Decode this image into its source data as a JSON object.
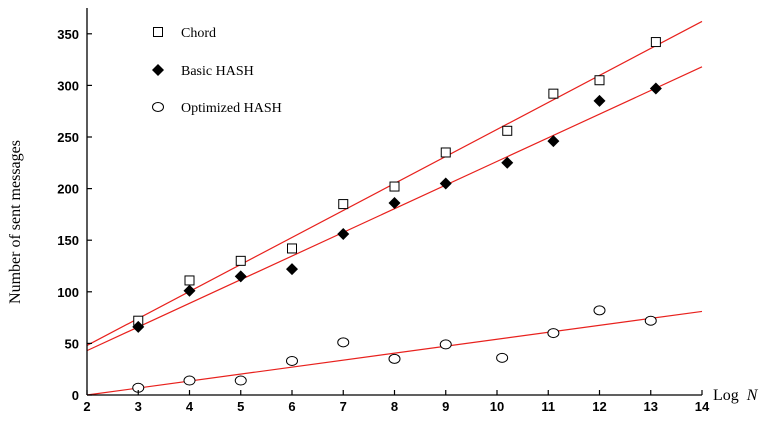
{
  "chart_data": {
    "type": "scatter",
    "title": "",
    "xlabel": "Log",
    "xlabel_var": "N",
    "ylabel": "Number of sent messages",
    "xlim": [
      2,
      14
    ],
    "ylim": [
      0,
      375
    ],
    "xticks": [
      2,
      3,
      4,
      5,
      6,
      7,
      8,
      9,
      10,
      11,
      12,
      13,
      14
    ],
    "yticks": [
      0,
      50,
      100,
      150,
      200,
      250,
      300,
      350
    ],
    "grid": false,
    "legend_position": "top-left",
    "fit_line_color": "#e8211d",
    "series": [
      {
        "name": "Chord",
        "marker": "open-square",
        "x": [
          3,
          4,
          5,
          6,
          7,
          8,
          9,
          10.2,
          11.1,
          12,
          13.1
        ],
        "y": [
          72,
          111,
          130,
          142,
          185,
          202,
          235,
          256,
          292,
          305,
          342
        ],
        "fit": [
          [
            2,
            48
          ],
          [
            14,
            362
          ]
        ]
      },
      {
        "name": "Basic HASH",
        "marker": "filled-diamond",
        "x": [
          3,
          4,
          5,
          6,
          7,
          8,
          9,
          10.2,
          11.1,
          12,
          13.1
        ],
        "y": [
          66,
          101,
          115,
          122,
          156,
          186,
          205,
          225,
          246,
          285,
          297
        ],
        "fit": [
          [
            2,
            43
          ],
          [
            14,
            318
          ]
        ]
      },
      {
        "name": "Optimized HASH",
        "marker": "open-circle",
        "x": [
          3,
          4,
          5,
          6,
          7,
          8,
          9,
          10.1,
          11.1,
          12,
          13
        ],
        "y": [
          7,
          14,
          14,
          33,
          51,
          35,
          49,
          36,
          60,
          82,
          72
        ],
        "fit": [
          [
            2,
            0
          ],
          [
            14,
            81
          ]
        ]
      }
    ]
  }
}
